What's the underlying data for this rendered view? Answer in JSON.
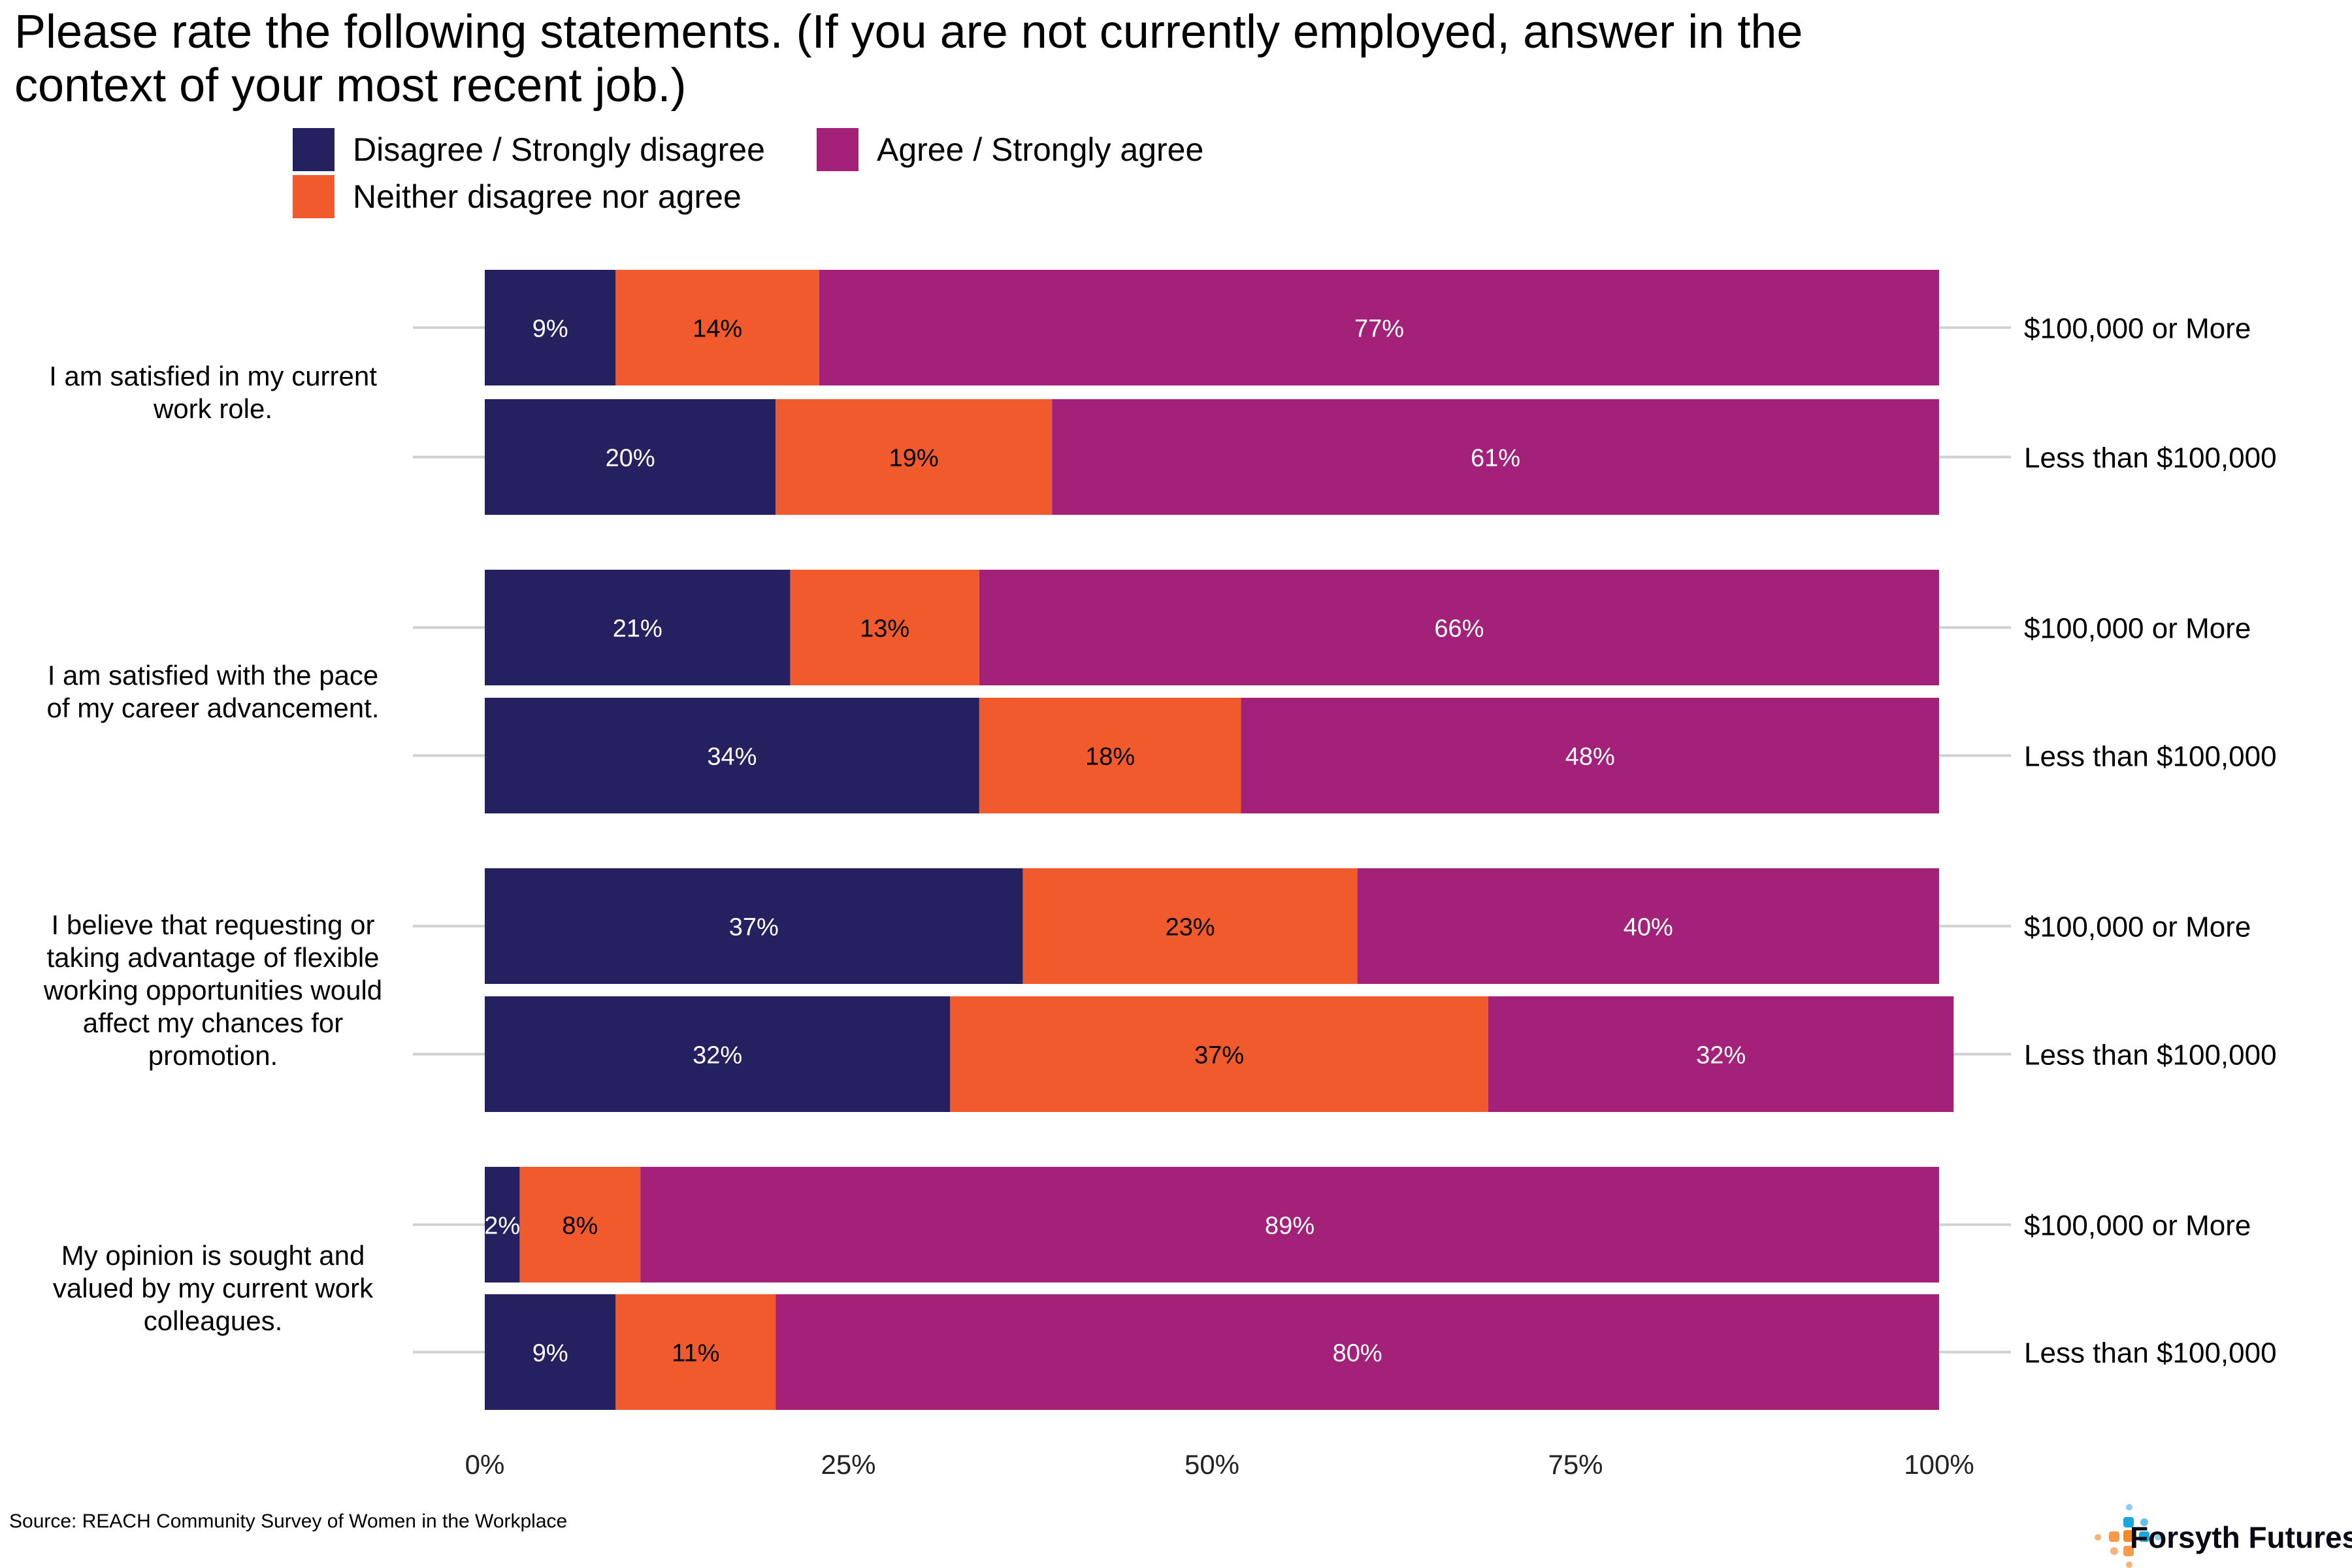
{
  "chart_data": {
    "type": "bar",
    "orientation": "horizontal",
    "stacked": true,
    "title": "Please rate the following statements. (If you are not currently employed, answer in the context of your most recent job.)",
    "title_lines": [
      "Please rate the following statements. (If you are not currently employed, answer in the",
      "context of your most recent job.)"
    ],
    "xlabel": "",
    "ylabel": "",
    "xlim": [
      0,
      100
    ],
    "x_ticks": [
      "0%",
      "25%",
      "50%",
      "75%",
      "100%"
    ],
    "x_tick_values": [
      0,
      25,
      50,
      75,
      100
    ],
    "grid": false,
    "legend_position": "top-left",
    "legend": [
      {
        "name": "Disagree / Strongly disagree",
        "color": "#252060"
      },
      {
        "name": "Agree / Strongly agree",
        "color": "#a32178"
      },
      {
        "name": "Neither disagree nor agree",
        "color": "#f05a2c"
      }
    ],
    "series_order": [
      "Disagree / Strongly disagree",
      "Neither disagree nor agree",
      "Agree / Strongly agree"
    ],
    "series_colors": {
      "Disagree / Strongly disagree": "#252060",
      "Neither disagree nor agree": "#f05a2c",
      "Agree / Strongly agree": "#a32178"
    },
    "label_colors": {
      "Disagree / Strongly disagree": "#ffffff",
      "Neither disagree nor agree": "#000000",
      "Agree / Strongly agree": "#ffffff"
    },
    "groups": [
      {
        "statement": "I am satisfied in my current work role.",
        "statement_lines": [
          "I am satisfied in my current",
          "work role."
        ],
        "rows": [
          {
            "income": "$100,000 or More",
            "values": [
              9,
              14,
              77
            ],
            "labels": [
              "9%",
              "14%",
              "77%"
            ]
          },
          {
            "income": "Less than $100,000",
            "values": [
              20,
              19,
              61
            ],
            "labels": [
              "20%",
              "19%",
              "61%"
            ]
          }
        ]
      },
      {
        "statement": "I am satisfied with the pace of my career advancement.",
        "statement_lines": [
          "I am satisfied with the pace",
          "of my career advancement."
        ],
        "rows": [
          {
            "income": "$100,000 or More",
            "values": [
              21,
              13,
              66
            ],
            "labels": [
              "21%",
              "13%",
              "66%"
            ]
          },
          {
            "income": "Less than $100,000",
            "values": [
              34,
              18,
              48
            ],
            "labels": [
              "34%",
              "18%",
              "48%"
            ]
          }
        ]
      },
      {
        "statement": "I believe that requesting or taking advantage of flexible working opportunities would affect my chances for promotion.",
        "statement_lines": [
          "I believe that requesting or",
          "taking advantage of flexible",
          "working opportunities would",
          "affect my chances for",
          "promotion."
        ],
        "rows": [
          {
            "income": "$100,000 or More",
            "values": [
              37,
              23,
              40
            ],
            "labels": [
              "37%",
              "23%",
              "40%"
            ]
          },
          {
            "income": "Less than $100,000",
            "values": [
              32,
              37,
              32
            ],
            "labels": [
              "32%",
              "37%",
              "32%"
            ]
          }
        ]
      },
      {
        "statement": "My opinion is sought and valued by my current work colleagues.",
        "statement_lines": [
          "My opinion is sought and",
          "valued by my current work",
          "colleagues."
        ],
        "rows": [
          {
            "income": "$100,000 or More",
            "values": [
              2.4,
              8.3,
              89.3
            ],
            "labels": [
              "2%",
              "8%",
              "89%"
            ]
          },
          {
            "income": "Less than $100,000",
            "values": [
              9,
              11,
              80
            ],
            "labels": [
              "9%",
              "11%",
              "80%"
            ]
          }
        ]
      }
    ],
    "source": "Source: REACH Community Survey of Women in the Workplace"
  },
  "footer": {
    "source": "Source: REACH Community Survey of Women in the Workplace",
    "logo_text": "Forsyth Futures"
  }
}
